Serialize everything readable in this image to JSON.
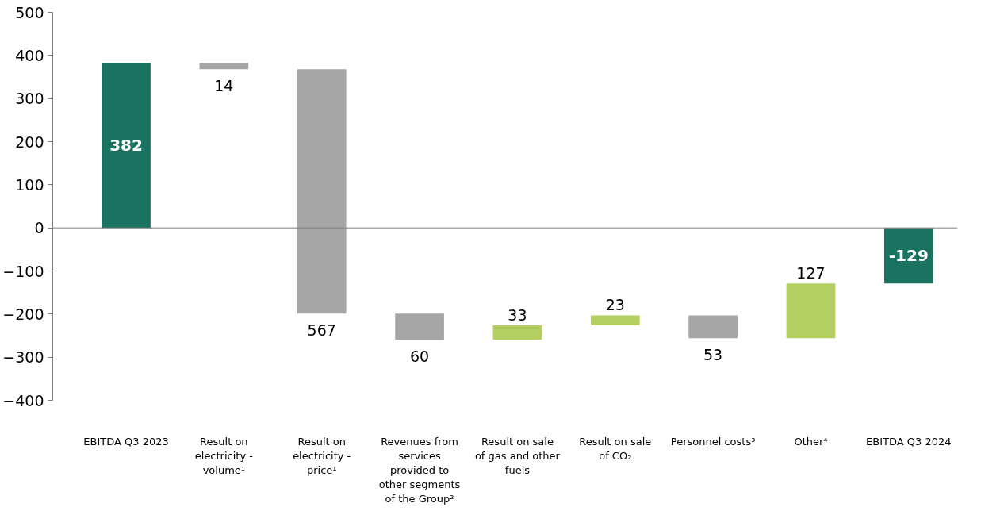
{
  "chart_data": {
    "type": "bar",
    "categories": [
      "EBITDA Q3 2023",
      "Result on electricity - volume¹",
      "Result on electricity - price¹",
      "Revenues from services provided to other segments of the Group²",
      "Result on sale of gas and other fuels",
      "Result on sale of CO₂",
      "Personnel costs³",
      "Other⁴",
      "EBITDA Q3 2024"
    ],
    "values": [
      382,
      -14,
      -567,
      -60,
      33,
      23,
      -53,
      127,
      -129
    ],
    "base": [
      0,
      382,
      368,
      -199,
      -259,
      -226,
      -203,
      -256,
      0
    ],
    "colors": [
      "#1a7360",
      "#a6a6a6",
      "#a6a6a6",
      "#a6a6a6",
      "#b3cf62",
      "#b3cf62",
      "#a6a6a6",
      "#b3cf62",
      "#1a7360"
    ],
    "value_labels": [
      "382",
      "14",
      "567",
      "60",
      "33",
      "23",
      "53",
      "127",
      "-129"
    ],
    "ylim": [
      -400,
      500
    ],
    "yticks": [
      -400,
      -300,
      -200,
      -100,
      0,
      100,
      200,
      300,
      400,
      500
    ],
    "grid": false,
    "ref_lines": [
      {
        "axis": "y",
        "value": 0,
        "color": "#808080"
      }
    ]
  }
}
